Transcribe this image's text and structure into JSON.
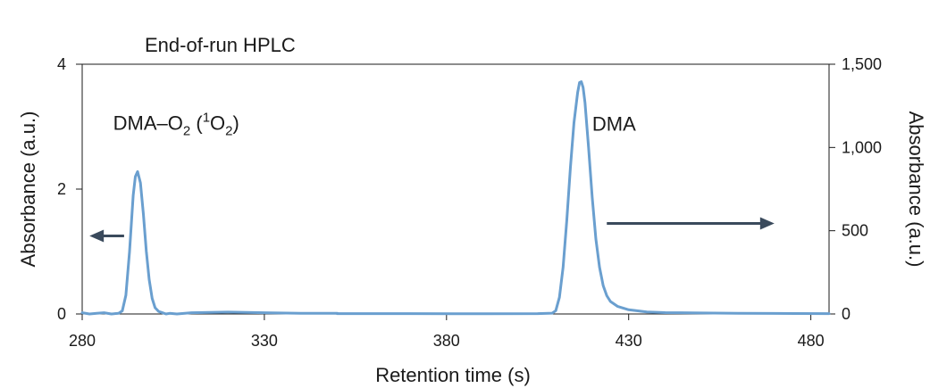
{
  "chart_data": {
    "type": "line",
    "title": "End-of-run HPLC",
    "xlabel": "Retention time (s)",
    "ylabel_left": "Absorbance (a.u.)",
    "ylabel_right": "Absorbance (a.u.)",
    "xlim": [
      280,
      485
    ],
    "ylim_left": [
      0,
      4
    ],
    "ylim_right": [
      0,
      1500
    ],
    "x_ticks": [
      280,
      330,
      380,
      430,
      480
    ],
    "y_left_ticks": [
      0,
      2,
      4
    ],
    "y_right_ticks": [
      0,
      500,
      1000,
      1500
    ],
    "x_tick_labels": [
      "280",
      "330",
      "380",
      "430",
      "480"
    ],
    "y_left_tick_labels": [
      "0",
      "2",
      "4"
    ],
    "y_right_tick_labels": [
      "0",
      "500",
      "1,000",
      "1,500"
    ],
    "grid": false,
    "colors": {
      "trace": "#6a9fcf",
      "arrow": "#3a4a5c",
      "axis": "#1a1a1a"
    },
    "series": [
      {
        "axis": "left",
        "x": [
          280,
          282,
          284,
          286,
          288,
          290,
          291,
          292,
          293,
          294,
          294.6,
          295.2,
          296,
          296.8,
          297.6,
          298.4,
          299.2,
          300,
          301,
          302,
          303,
          304,
          306,
          310,
          320,
          330,
          340,
          350
        ],
        "values": [
          0.02,
          0.0,
          0.01,
          0.02,
          0.0,
          0.01,
          0.05,
          0.3,
          1.0,
          1.9,
          2.2,
          2.28,
          2.1,
          1.6,
          1.0,
          0.55,
          0.25,
          0.1,
          0.04,
          0.02,
          0.0,
          0.01,
          0.0,
          0.02,
          0.03,
          0.02,
          0.01,
          0.01
        ]
      },
      {
        "axis": "right",
        "x": [
          350,
          370,
          390,
          405,
          409,
          410,
          411,
          412,
          413,
          414,
          415,
          416,
          416.5,
          417,
          417.5,
          418,
          419,
          420,
          421,
          422,
          423,
          424,
          425,
          427,
          430,
          435,
          440,
          450,
          460,
          470,
          485
        ],
        "values": [
          2,
          2,
          1,
          2,
          5,
          20,
          100,
          280,
          560,
          880,
          1150,
          1330,
          1390,
          1395,
          1360,
          1270,
          1000,
          700,
          450,
          280,
          170,
          110,
          75,
          45,
          25,
          12,
          8,
          6,
          4,
          3,
          2
        ]
      }
    ],
    "annotations": [
      {
        "text": "DMA",
        "x": 420,
        "y_right": 1100
      },
      {
        "text": "DMA–O",
        "sub1": "2",
        "mid": " (",
        "sup": "1",
        "mid2": "O",
        "sub2": "2",
        "end": ")",
        "x": 288.5,
        "y_left": 2.95
      }
    ],
    "arrows": [
      {
        "direction": "left",
        "axis": "left",
        "x_start": 291.5,
        "x_end": 282,
        "y": 1.25
      },
      {
        "direction": "right",
        "axis": "left",
        "x_start": 424,
        "x_end": 470,
        "y": 1.45
      }
    ]
  }
}
